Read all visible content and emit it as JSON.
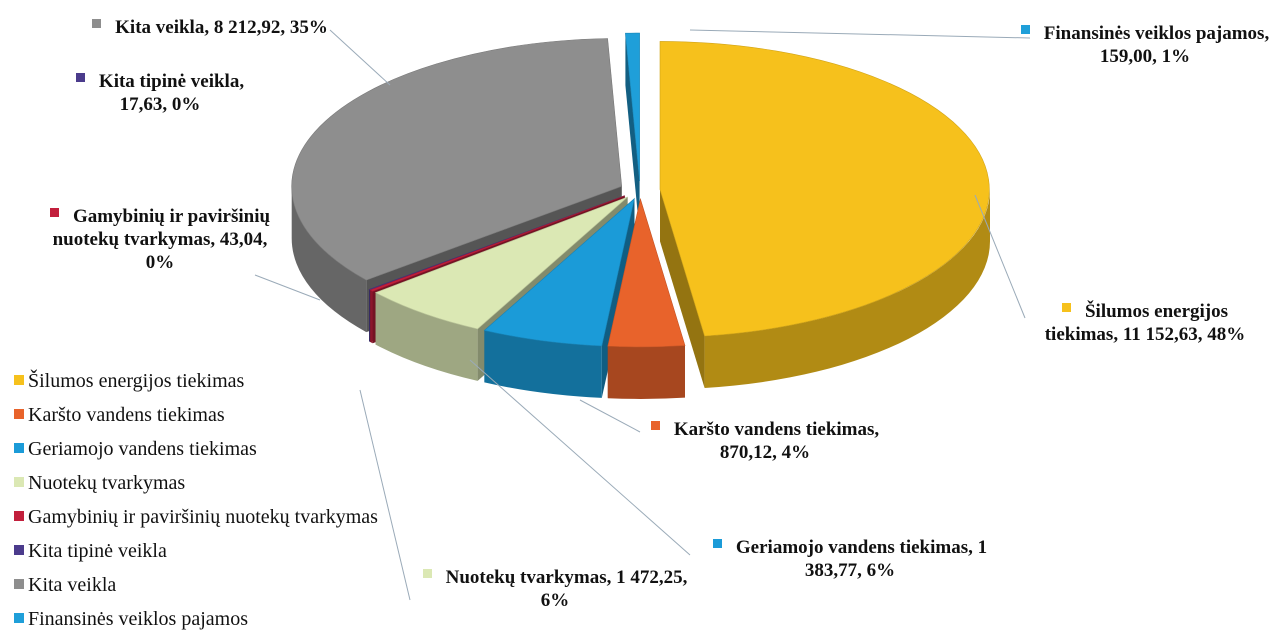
{
  "chart_data": {
    "type": "pie",
    "categories": [
      "Šilumos energijos tiekimas",
      "Karšto vandens tiekimas",
      "Geriamojo vandens tiekimas",
      "Nuotekų tvarkymas",
      "Gamybinių ir paviršinių nuotekų tvarkymas",
      "Kita tipinė veikla",
      "Kita veikla",
      "Finansinės veiklos pajamos"
    ],
    "values": [
      11152.63,
      870.12,
      1383.77,
      1472.25,
      43.04,
      17.63,
      8212.92,
      159.0
    ],
    "value_labels": [
      "11 152,63",
      "870,12",
      "1 383,77",
      "1 472,25",
      "43,04",
      "17,63",
      "8 212,92",
      "159,00"
    ],
    "percent_labels": [
      "48%",
      "4%",
      "6%",
      "6%",
      "0%",
      "0%",
      "35%",
      "1%"
    ],
    "label_separator": ", ",
    "colors": [
      "#f6c11c",
      "#e8632b",
      "#1b9bd8",
      "#dbe8b4",
      "#c21f3c",
      "#4b3b8c",
      "#8e8e8e",
      "#1f9fd9"
    ],
    "legend": "bottom-left"
  }
}
